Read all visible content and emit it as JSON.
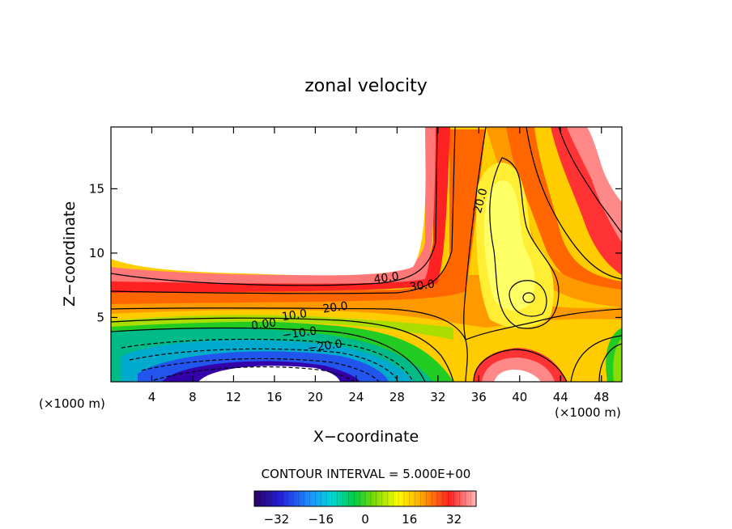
{
  "chart_data": {
    "type": "heatmap",
    "title": "zonal velocity",
    "xlabel": "X−coordinate",
    "ylabel": "Z−coordinate",
    "x_unit": "(×1000 m)",
    "y_unit": "(×1000 m)",
    "xlim": [
      0,
      50
    ],
    "ylim": [
      0,
      19.8
    ],
    "x_ticks": [
      4,
      8,
      12,
      16,
      20,
      24,
      28,
      32,
      36,
      40,
      44,
      48
    ],
    "y_ticks": [
      5,
      10,
      15
    ],
    "x_tick_labels": [
      "4",
      "8",
      "12",
      "16",
      "20",
      "24",
      "28",
      "32",
      "36",
      "40",
      "44",
      "48"
    ],
    "y_tick_labels": [
      "5",
      "10",
      "15"
    ],
    "contour_interval_text": "CONTOUR INTERVAL = 5.000E+00",
    "contour_interval": 5.0,
    "contour_labels": [
      {
        "text": "40.0",
        "x": 27,
        "z": 7.8
      },
      {
        "text": "30.0",
        "x": 30.5,
        "z": 7.2
      },
      {
        "text": "20.0",
        "x": 22,
        "z": 5.5
      },
      {
        "text": "20.0",
        "x": 36.5,
        "z": 14
      },
      {
        "text": "10.0",
        "x": 18,
        "z": 4.9
      },
      {
        "text": "0.00",
        "x": 15,
        "z": 4.2
      },
      {
        "text": "−10.0",
        "x": 18.5,
        "z": 3.5
      },
      {
        "text": "−20.0",
        "x": 21,
        "z": 2.5
      }
    ],
    "colorbar": {
      "min": -40,
      "max": 40,
      "ticks": [
        -32,
        -16,
        0,
        16,
        32
      ],
      "tick_labels": [
        "−32",
        "−16",
        "0",
        "16",
        "32"
      ]
    }
  }
}
